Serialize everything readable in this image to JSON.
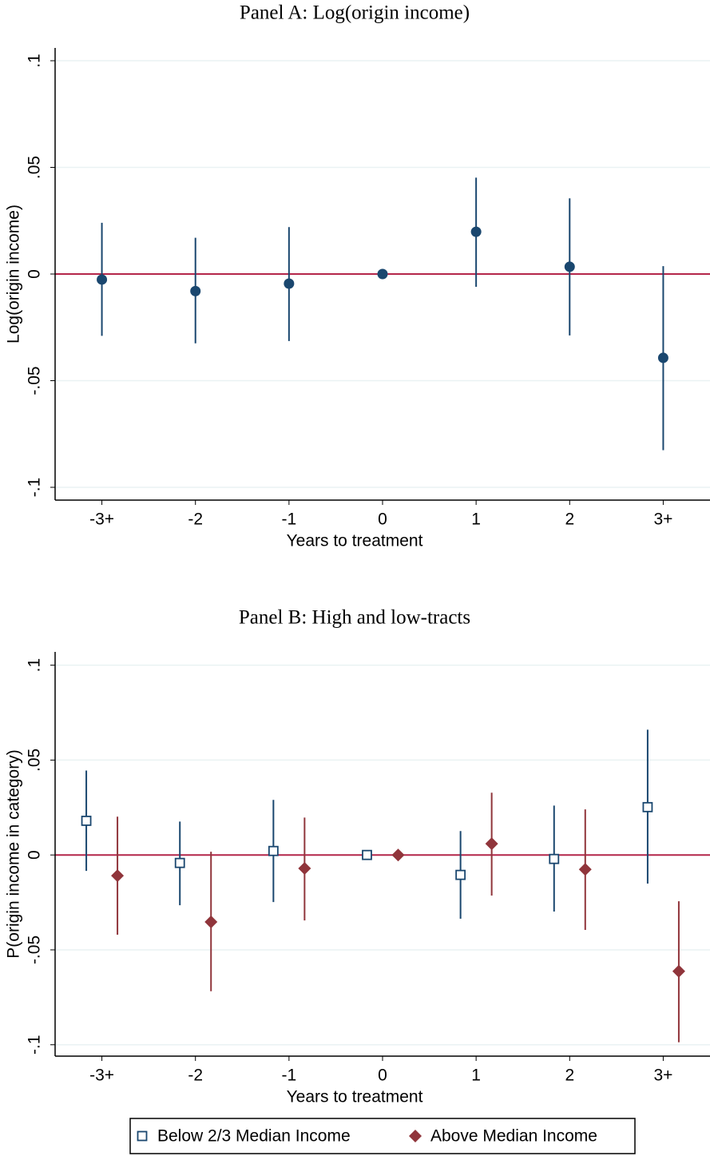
{
  "chart_data": [
    {
      "type": "errorbar",
      "title": "Panel A: Log(origin income)",
      "x_label": "Years to treatment",
      "y_label": "Log(origin income)",
      "categories": [
        "-3+",
        "-2",
        "-1",
        "0",
        "1",
        "2",
        "3+"
      ],
      "series": [
        {
          "color": "#1a476f",
          "marker": "circle",
          "values": [
            -0.0026,
            -0.008,
            -0.0045,
            0,
            0.0198,
            0.0034,
            -0.0393
          ],
          "ci_low": [
            -0.029,
            -0.0325,
            -0.0314,
            0,
            -0.006,
            -0.0288,
            -0.0826
          ],
          "ci_high": [
            0.024,
            0.017,
            0.022,
            0,
            0.0452,
            0.0355,
            0.0037
          ]
        }
      ],
      "ylim": [
        -0.106,
        0.106
      ],
      "yticks": [
        {
          "value": -0.1,
          "label": "-.1"
        },
        {
          "value": -0.05,
          "label": "-.05"
        },
        0,
        {
          "value": 0.05,
          "label": ".05"
        },
        {
          "value": 0.1,
          "label": ".1"
        }
      ],
      "grid": true,
      "reference_line": 0,
      "reference_color": "#b4264a",
      "legend": false
    },
    {
      "type": "errorbar",
      "title": "Panel B: High and low-tracts",
      "x_label": "Years to treatment",
      "y_label": "P(origin income in category)",
      "categories": [
        "-3+",
        "-2",
        "-1",
        "0",
        "1",
        "2",
        "3+"
      ],
      "series": [
        {
          "name": "Below 2/3 Median Income",
          "color": "#1a476f",
          "marker": "square",
          "values": [
            0.018,
            -0.0042,
            0.0021,
            0,
            -0.0105,
            -0.0021,
            0.0252
          ],
          "ci_low": [
            -0.0084,
            -0.0265,
            -0.0248,
            0,
            -0.0336,
            -0.0298,
            -0.0151
          ],
          "ci_high": [
            0.0445,
            0.0176,
            0.029,
            0,
            0.0126,
            0.026,
            0.066
          ]
        },
        {
          "name": "Above Median Income",
          "color": "#90353b",
          "marker": "diamond",
          "values": [
            -0.0109,
            -0.0353,
            -0.0071,
            0,
            0.0059,
            -0.0076,
            -0.0613
          ],
          "ci_low": [
            -0.042,
            -0.0718,
            -0.0345,
            0,
            -0.0214,
            -0.0395,
            -0.0987
          ],
          "ci_high": [
            0.0202,
            0.0017,
            0.0197,
            0,
            0.0328,
            0.024,
            -0.0244
          ]
        }
      ],
      "ylim": [
        -0.106,
        0.107
      ],
      "yticks": [
        {
          "value": -0.1,
          "label": "-.1"
        },
        {
          "value": -0.05,
          "label": "-.05"
        },
        0,
        {
          "value": 0.05,
          "label": ".05"
        },
        {
          "value": 0.1,
          "label": ".1"
        }
      ],
      "grid": true,
      "reference_line": 0,
      "reference_color": "#b4264a",
      "legend": true
    }
  ]
}
